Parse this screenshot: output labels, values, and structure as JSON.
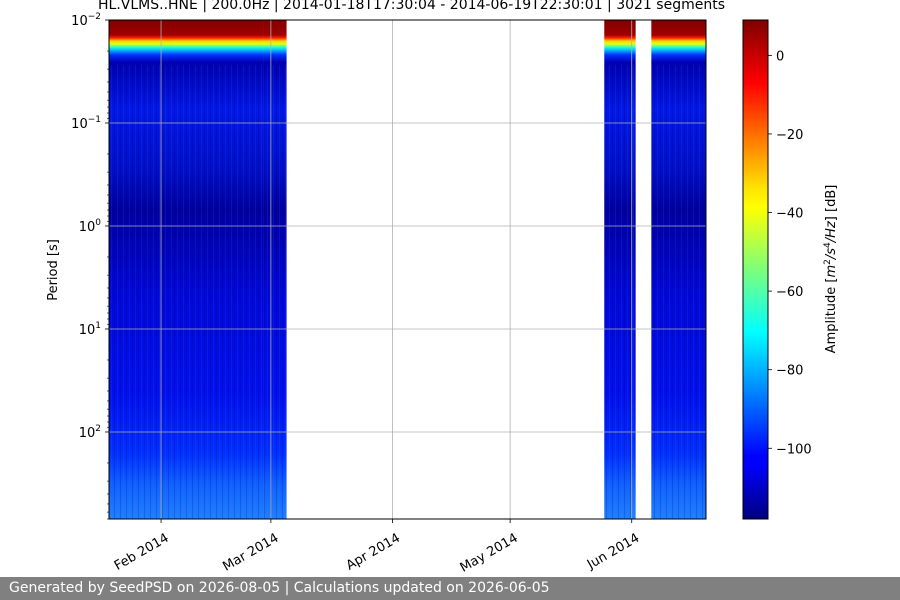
{
  "chart_data": {
    "type": "heatmap",
    "title": "HL.VLMS..HNE | 200.0Hz | 2014-01-18T17:30:04 - 2014-06-19T22:30:01 | 3021 segments",
    "ylabel": "Period [s]",
    "colorbar_label_parts": [
      "Amplitude [",
      "m",
      "2",
      "/",
      "s",
      "4",
      "/",
      "Hz",
      "] [dB]"
    ],
    "x_range": [
      "2014-01-18",
      "2014-06-19"
    ],
    "x_tick_labels": [
      "Feb 2014",
      "Mar 2014",
      "Apr 2014",
      "May 2014",
      "Jun 2014"
    ],
    "x_tick_dates": [
      "2014-02-01",
      "2014-03-01",
      "2014-04-01",
      "2014-05-01",
      "2014-06-01"
    ],
    "y_scale": "log",
    "y_inverted": true,
    "y_range": [
      0.01,
      700
    ],
    "y_tick_values": [
      0.01,
      0.1,
      1,
      10,
      100
    ],
    "y_tick_labels": [
      {
        "base": "10",
        "exp": "−2"
      },
      {
        "base": "10",
        "exp": "−1"
      },
      {
        "base": "10",
        "exp": "0"
      },
      {
        "base": "10",
        "exp": "1"
      },
      {
        "base": "10",
        "exp": "2"
      }
    ],
    "color_range": [
      -118,
      9
    ],
    "colorbar_ticks": [
      0,
      -20,
      -40,
      -60,
      -80,
      -100
    ],
    "colorbar_tick_labels": [
      "0",
      "−20",
      "−40",
      "−60",
      "−80",
      "−100"
    ],
    "colormap": "jet",
    "data_segments": [
      {
        "start": "2014-01-18",
        "end": "2014-02-26"
      },
      {
        "start": "2014-02-27",
        "end": "2014-03-04"
      },
      {
        "start": "2014-05-25",
        "end": "2014-06-01"
      },
      {
        "start": "2014-06-06",
        "end": "2014-06-19"
      }
    ],
    "grid": true
  },
  "footer": {
    "text": "Generated by SeedPSD on 2026-08-05 | Calculations updated on 2026-06-05"
  }
}
